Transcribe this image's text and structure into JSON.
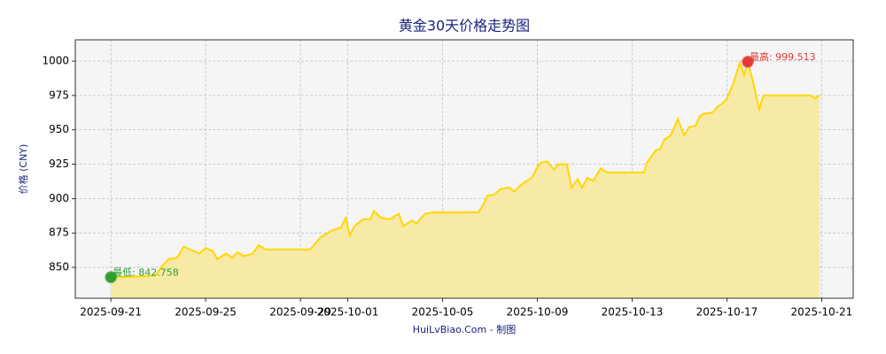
{
  "chart_data": {
    "type": "line",
    "title": "黄金30天价格走势图",
    "y_label": "价格 (CNY)",
    "x_label": "HuiLvBiao.Com - 制图",
    "x": [
      0,
      0.75,
      1.87,
      2.17,
      2.43,
      2.8,
      3.07,
      3.36,
      3.74,
      4,
      4.3,
      4.49,
      4.86,
      5.12,
      5.35,
      5.61,
      5.98,
      6.24,
      6.54,
      8.41,
      8.86,
      9.35,
      9.72,
      9.91,
      10.09,
      10.28,
      10.65,
      10.95,
      11.1,
      11.4,
      11.78,
      12.15,
      12.34,
      12.71,
      12.9,
      13.27,
      13.64,
      15.51,
      15.7,
      15.89,
      16.19,
      16.45,
      16.82,
      17.01,
      17.38,
      17.76,
      17.94,
      18.13,
      18.43,
      18.69,
      18.88,
      19.25,
      19.44,
      19.7,
      19.89,
      20.11,
      20.37,
      20.67,
      20.93,
      22.5,
      22.62,
      22.99,
      23.18,
      23.36,
      23.63,
      23.93,
      24.19,
      24.41,
      24.67,
      24.86,
      25.05,
      25.23,
      25.42,
      25.61,
      25.79,
      25.98,
      26.28,
      26.54,
      26.73,
      26.88,
      27.1,
      27.36,
      27.55,
      29.53,
      29.72,
      29.91
    ],
    "series": [
      {
        "name": "价格",
        "color": "#ffd700",
        "fill": "#f7eaa6",
        "values": [
          842.758,
          843,
          844,
          851,
          856,
          857,
          865,
          863,
          860,
          864,
          862,
          856,
          860,
          857,
          861,
          858,
          860,
          866,
          863,
          863,
          872,
          877,
          879,
          886,
          873,
          880,
          885,
          885,
          891,
          886,
          885,
          889,
          880,
          884,
          882,
          889,
          890,
          890,
          895,
          902,
          903,
          907,
          908,
          905,
          911,
          915,
          921,
          926,
          927,
          921,
          925,
          925,
          908,
          914,
          908,
          915,
          913,
          922,
          919,
          919,
          926,
          935,
          936,
          943,
          946,
          958,
          946,
          952,
          953,
          960,
          962,
          962,
          963,
          967,
          969,
          972,
          984,
          999,
          990,
          999.513,
          985,
          965,
          975,
          975,
          973,
          975
        ]
      }
    ],
    "annotations": [
      {
        "label": "最低: 842.758",
        "x": 0,
        "value": 842.758,
        "color": "#2e9e2e"
      },
      {
        "label": "最高: 999.513",
        "x": 26.88,
        "value": 999.513,
        "color": "#e53935"
      }
    ],
    "xlim": [
      -1.5,
      31.33
    ],
    "ylim": [
      827.5,
      1015.5
    ],
    "yticks": [
      850,
      875,
      900,
      925,
      950,
      975,
      1000
    ],
    "xticks": [
      {
        "value": 0,
        "label": "2025-09-21"
      },
      {
        "value": 4,
        "label": "2025-09-25"
      },
      {
        "value": 8,
        "label": "2025-09-29"
      },
      {
        "value": 10,
        "label": "2025-10-01"
      },
      {
        "value": 14,
        "label": "2025-10-05"
      },
      {
        "value": 18,
        "label": "2025-10-09"
      },
      {
        "value": 22,
        "label": "2025-10-13"
      },
      {
        "value": 26,
        "label": "2025-10-17"
      },
      {
        "value": 30,
        "label": "2025-10-21"
      }
    ],
    "grid": true
  }
}
